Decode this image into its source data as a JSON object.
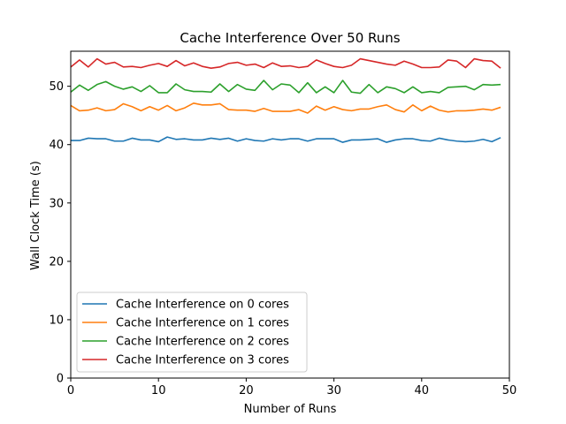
{
  "chart_data": {
    "type": "line",
    "title": "Cache Interference Over 50 Runs",
    "xlabel": "Number of Runs",
    "ylabel": "Wall Clock Time (s)",
    "xlim": [
      0,
      50
    ],
    "ylim": [
      0,
      56
    ],
    "xticks": [
      0,
      10,
      20,
      30,
      40,
      50
    ],
    "yticks": [
      0,
      10,
      20,
      30,
      40,
      50
    ],
    "grid": false,
    "legend_position": "lower-left",
    "x": [
      0,
      1,
      2,
      3,
      4,
      5,
      6,
      7,
      8,
      9,
      10,
      11,
      12,
      13,
      14,
      15,
      16,
      17,
      18,
      19,
      20,
      21,
      22,
      23,
      24,
      25,
      26,
      27,
      28,
      29,
      30,
      31,
      32,
      33,
      34,
      35,
      36,
      37,
      38,
      39,
      40,
      41,
      42,
      43,
      44,
      45,
      46,
      47,
      48,
      49
    ],
    "series": [
      {
        "name": "Cache Interference on 0 cores",
        "color": "#1f77b4",
        "values": [
          40.7,
          40.7,
          41.1,
          41.0,
          41.0,
          40.6,
          40.6,
          41.1,
          40.8,
          40.8,
          40.5,
          41.3,
          40.9,
          41.0,
          40.8,
          40.8,
          41.1,
          40.9,
          41.1,
          40.6,
          41.0,
          40.7,
          40.6,
          41.0,
          40.8,
          41.0,
          41.0,
          40.6,
          41.0,
          41.0,
          41.0,
          40.4,
          40.8,
          40.8,
          40.9,
          41.0,
          40.4,
          40.8,
          41.0,
          41.0,
          40.7,
          40.6,
          41.1,
          40.8,
          40.6,
          40.5,
          40.6,
          40.9,
          40.5,
          41.2
        ]
      },
      {
        "name": "Cache Interference on 1 cores",
        "color": "#ff7f0e",
        "values": [
          46.7,
          45.8,
          45.9,
          46.3,
          45.8,
          46.0,
          47.0,
          46.5,
          45.8,
          46.5,
          45.9,
          46.7,
          45.8,
          46.3,
          47.1,
          46.8,
          46.8,
          47.0,
          46.0,
          45.9,
          45.9,
          45.7,
          46.2,
          45.7,
          45.7,
          45.7,
          46.0,
          45.4,
          46.6,
          45.9,
          46.5,
          46.0,
          45.8,
          46.1,
          46.1,
          46.5,
          46.8,
          46.0,
          45.6,
          46.8,
          45.8,
          46.6,
          45.9,
          45.6,
          45.8,
          45.8,
          45.9,
          46.1,
          45.9,
          46.4
        ]
      },
      {
        "name": "Cache Interference on 2 cores",
        "color": "#2ca02c",
        "values": [
          49.0,
          50.2,
          49.3,
          50.3,
          50.8,
          50.0,
          49.5,
          49.9,
          49.1,
          50.1,
          48.9,
          48.9,
          50.4,
          49.4,
          49.1,
          49.1,
          49.0,
          50.4,
          49.1,
          50.3,
          49.5,
          49.3,
          51.0,
          49.4,
          50.4,
          50.2,
          48.9,
          50.6,
          48.9,
          49.9,
          48.9,
          51.0,
          49.0,
          48.8,
          50.3,
          48.9,
          49.9,
          49.6,
          48.9,
          49.9,
          48.9,
          49.1,
          48.9,
          49.8,
          49.9,
          50.0,
          49.4,
          50.3,
          50.2,
          50.3
        ]
      },
      {
        "name": "Cache Interference on 3 cores",
        "color": "#d62728",
        "values": [
          53.3,
          54.5,
          53.3,
          54.7,
          53.8,
          54.1,
          53.3,
          53.4,
          53.2,
          53.6,
          53.9,
          53.4,
          54.4,
          53.5,
          54.0,
          53.4,
          53.1,
          53.3,
          53.9,
          54.1,
          53.6,
          53.8,
          53.2,
          54.0,
          53.4,
          53.5,
          53.2,
          53.4,
          54.5,
          53.9,
          53.4,
          53.2,
          53.6,
          54.7,
          54.4,
          54.1,
          53.8,
          53.6,
          54.3,
          53.8,
          53.2,
          53.2,
          53.3,
          54.5,
          54.3,
          53.2,
          54.7,
          54.4,
          54.3,
          53.1
        ]
      }
    ]
  }
}
